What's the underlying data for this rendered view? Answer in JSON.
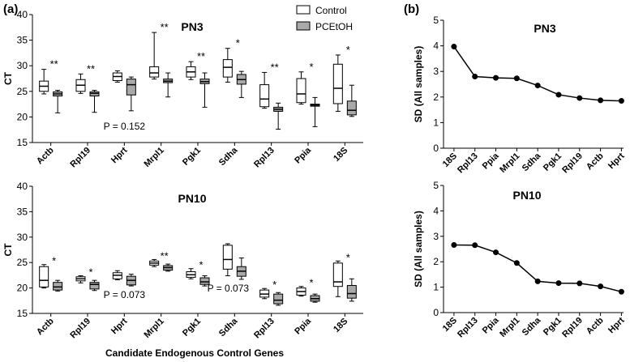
{
  "figure": {
    "panel_a_label": "(a)",
    "panel_b_label": "(b)",
    "xlabel_a": "Candidate Endogenous Control Genes",
    "legend": {
      "control": "Control",
      "treated": "PCEtOH",
      "control_color": "#ffffff",
      "treated_color": "#a9a9a9"
    }
  },
  "chart_data": [
    {
      "type": "box",
      "id": "a_pn3",
      "title": "PN3",
      "ylabel": "CT",
      "ylim": [
        15,
        40
      ],
      "yticks": [
        15,
        20,
        25,
        30,
        35,
        40
      ],
      "categories": [
        "Actb",
        "Rpl19",
        "Hprt",
        "Mrpl1",
        "Pgk1",
        "Sdha",
        "Rpl13",
        "Ppia",
        "18S"
      ],
      "series": [
        {
          "name": "Control",
          "boxes": [
            {
              "min": 24.5,
              "q1": 25.0,
              "median": 26.0,
              "q3": 27.0,
              "max": 29.3
            },
            {
              "min": 24.6,
              "q1": 25.0,
              "median": 26.2,
              "q3": 27.3,
              "max": 28.4
            },
            {
              "min": 26.8,
              "q1": 27.1,
              "median": 27.9,
              "q3": 28.6,
              "max": 29.0
            },
            {
              "min": 27.4,
              "q1": 27.8,
              "median": 28.6,
              "q3": 29.8,
              "max": 36.5
            },
            {
              "min": 27.3,
              "q1": 27.8,
              "median": 28.8,
              "q3": 29.8,
              "max": 30.8
            },
            {
              "min": 26.8,
              "q1": 27.8,
              "median": 29.7,
              "q3": 31.2,
              "max": 33.4
            },
            {
              "min": 21.7,
              "q1": 22.0,
              "median": 23.5,
              "q3": 26.3,
              "max": 28.7
            },
            {
              "min": 22.5,
              "q1": 22.8,
              "median": 24.5,
              "q3": 27.5,
              "max": 28.8
            },
            {
              "min": 21.1,
              "q1": 22.6,
              "median": 25.6,
              "q3": 30.3,
              "max": 32.1
            }
          ]
        },
        {
          "name": "PCEtOH",
          "boxes": [
            {
              "min": 20.8,
              "q1": 24.1,
              "median": 24.5,
              "q3": 24.9,
              "max": 25.2
            },
            {
              "min": 20.9,
              "q1": 24.1,
              "median": 24.6,
              "q3": 24.9,
              "max": 25.2
            },
            {
              "min": 21.2,
              "q1": 24.3,
              "median": 26.3,
              "q3": 27.4,
              "max": 27.8
            },
            {
              "min": 23.9,
              "q1": 26.7,
              "median": 27.0,
              "q3": 27.4,
              "max": 28.6
            },
            {
              "min": 21.9,
              "q1": 26.5,
              "median": 26.9,
              "q3": 27.4,
              "max": 28.6
            },
            {
              "min": 23.8,
              "q1": 26.4,
              "median": 27.3,
              "q3": 28.3,
              "max": 28.9
            },
            {
              "min": 17.6,
              "q1": 21.1,
              "median": 21.5,
              "q3": 21.9,
              "max": 22.7
            },
            {
              "min": 18.1,
              "q1": 22.1,
              "median": 22.3,
              "q3": 22.5,
              "max": 23.8
            },
            {
              "min": 20.1,
              "q1": 20.4,
              "median": 21.3,
              "q3": 23.1,
              "max": 26.2
            }
          ]
        }
      ],
      "significance": [
        "**",
        "**",
        "",
        "**",
        "**",
        "*",
        "**",
        "*",
        "*"
      ],
      "annotation": "P =  0.152"
    },
    {
      "type": "box",
      "id": "a_pn10",
      "title": "PN10",
      "ylabel": "CT",
      "ylim": [
        15,
        40
      ],
      "yticks": [
        15,
        20,
        25,
        30,
        35,
        40
      ],
      "categories": [
        "Actb",
        "Rpl19",
        "Hprt",
        "Mrpl1",
        "Pgk1",
        "Sdha",
        "Rpl13",
        "Ppia",
        "18S"
      ],
      "series": [
        {
          "name": "Control",
          "boxes": [
            {
              "min": 20.0,
              "q1": 20.2,
              "median": 21.5,
              "q3": 24.2,
              "max": 24.6
            },
            {
              "min": 21.0,
              "q1": 21.4,
              "median": 21.8,
              "q3": 22.2,
              "max": 22.4
            },
            {
              "min": 21.6,
              "q1": 21.8,
              "median": 22.5,
              "q3": 23.0,
              "max": 23.4
            },
            {
              "min": 24.2,
              "q1": 24.5,
              "median": 24.9,
              "q3": 25.3,
              "max": 25.6
            },
            {
              "min": 21.8,
              "q1": 22.1,
              "median": 22.6,
              "q3": 23.2,
              "max": 23.8
            },
            {
              "min": 22.4,
              "q1": 23.7,
              "median": 25.6,
              "q3": 28.4,
              "max": 28.7
            },
            {
              "min": 17.9,
              "q1": 18.2,
              "median": 18.8,
              "q3": 19.6,
              "max": 19.9
            },
            {
              "min": 18.4,
              "q1": 18.6,
              "median": 19.3,
              "q3": 20.0,
              "max": 20.3
            },
            {
              "min": 18.3,
              "q1": 20.3,
              "median": 21.2,
              "q3": 24.9,
              "max": 25.3
            }
          ]
        },
        {
          "name": "PCEtOH",
          "boxes": [
            {
              "min": 19.4,
              "q1": 19.6,
              "median": 20.2,
              "q3": 21.1,
              "max": 21.5
            },
            {
              "min": 19.5,
              "q1": 19.8,
              "median": 20.7,
              "q3": 21.1,
              "max": 21.5
            },
            {
              "min": 20.4,
              "q1": 20.6,
              "median": 21.5,
              "q3": 22.3,
              "max": 22.7
            },
            {
              "min": 23.3,
              "q1": 23.5,
              "median": 24.0,
              "q3": 24.4,
              "max": 24.7
            },
            {
              "min": 20.4,
              "q1": 20.7,
              "median": 21.2,
              "q3": 22.0,
              "max": 22.4
            },
            {
              "min": 21.7,
              "q1": 22.3,
              "median": 23.3,
              "q3": 24.2,
              "max": 25.9
            },
            {
              "min": 16.6,
              "q1": 16.9,
              "median": 17.6,
              "q3": 18.8,
              "max": 19.1
            },
            {
              "min": 17.2,
              "q1": 17.4,
              "median": 17.9,
              "q3": 18.5,
              "max": 18.8
            },
            {
              "min": 17.4,
              "q1": 18.0,
              "median": 18.9,
              "q3": 20.5,
              "max": 21.8
            }
          ]
        }
      ],
      "significance": [
        "*",
        "*",
        "",
        "**",
        "*",
        "",
        "*",
        "*",
        "*"
      ],
      "annotations": [
        "P = 0.073",
        "P = 0.073"
      ]
    },
    {
      "type": "line",
      "id": "b_pn3",
      "title": "PN3",
      "ylabel": "SD (All samples)",
      "ylim": [
        0,
        5
      ],
      "yticks": [
        0,
        1,
        2,
        3,
        4,
        5
      ],
      "categories": [
        "18S",
        "Rpl13",
        "Ppia",
        "Mrpl1",
        "Sdha",
        "Pgk1",
        "Rpl19",
        "Actb",
        "Hprt"
      ],
      "values": [
        3.97,
        2.8,
        2.75,
        2.73,
        2.45,
        2.09,
        1.96,
        1.87,
        1.85
      ]
    },
    {
      "type": "line",
      "id": "b_pn10",
      "title": "PN10",
      "ylabel": "SD (All samples)",
      "ylim": [
        0,
        5
      ],
      "yticks": [
        0,
        1,
        2,
        3,
        4,
        5
      ],
      "categories": [
        "18S",
        "Rpl13",
        "Ppia",
        "Mrpl1",
        "Sdha",
        "Pgk1",
        "Rpl19",
        "Actb",
        "Hprt"
      ],
      "values": [
        2.66,
        2.65,
        2.37,
        1.95,
        1.23,
        1.16,
        1.15,
        1.03,
        0.82
      ]
    }
  ]
}
